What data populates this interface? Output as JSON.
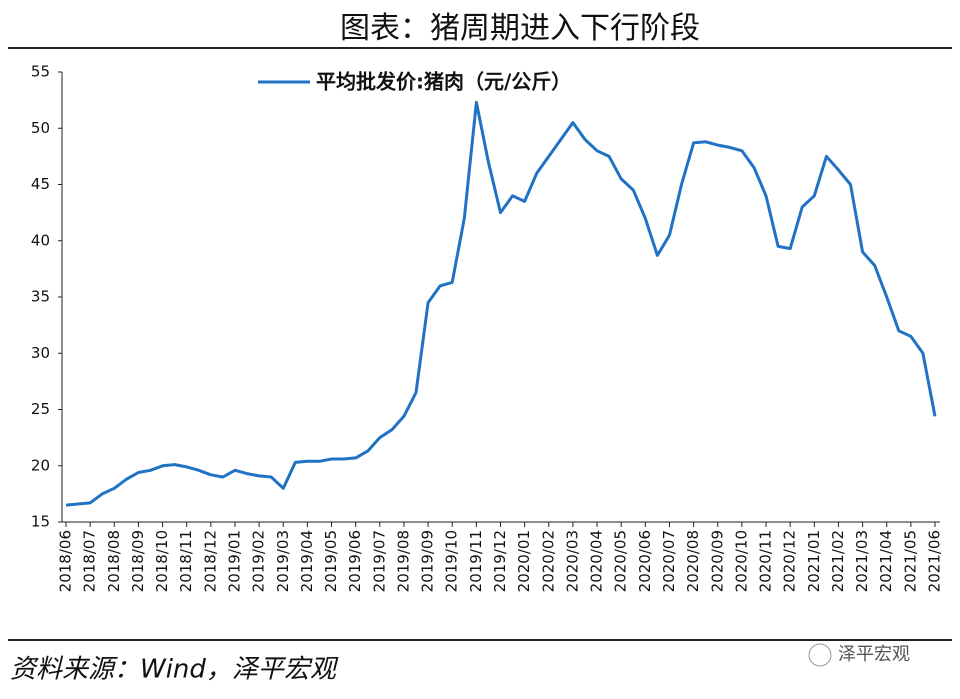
{
  "chart_data": {
    "type": "line",
    "title": "图表：猪周期进入下行阶段",
    "source": "资料来源：Wind，泽平宏观",
    "watermark": "泽平宏观",
    "categories": [
      "2018/06",
      null,
      "2018/07",
      null,
      "2018/08",
      null,
      "2018/09",
      null,
      "2018/10",
      null,
      "2018/11",
      null,
      "2018/12",
      null,
      "2019/01",
      null,
      "2019/02",
      null,
      "2019/03",
      null,
      "2019/04",
      null,
      "2019/05",
      null,
      "2019/06",
      null,
      "2019/07",
      null,
      "2019/08",
      null,
      "2019/09",
      null,
      "2019/10",
      null,
      "2019/11",
      null,
      "2019/12",
      null,
      "2020/01",
      null,
      "2020/02",
      null,
      "2020/03",
      null,
      "2020/04",
      null,
      "2020/05",
      null,
      "2020/06",
      null,
      "2020/07",
      null,
      "2020/08",
      null,
      "2020/09",
      null,
      "2020/10",
      null,
      "2020/11",
      null,
      "2020/12",
      null,
      "2021/01",
      null,
      "2021/02",
      null,
      "2021/03",
      null,
      "2021/04",
      null,
      "2021/05",
      null,
      "2021/06"
    ],
    "series": [
      {
        "name": "平均批发价:猪肉（元/公斤）",
        "color": "#1f72c4",
        "values": [
          16.5,
          16.6,
          16.7,
          17.5,
          18.0,
          18.8,
          19.4,
          19.6,
          20.0,
          20.1,
          19.9,
          19.6,
          19.2,
          19.0,
          19.6,
          19.3,
          19.1,
          19.0,
          18.0,
          20.3,
          20.4,
          20.4,
          20.6,
          20.6,
          20.7,
          21.3,
          22.5,
          23.2,
          24.4,
          26.5,
          34.5,
          36.0,
          36.3,
          42.0,
          52.3,
          47.0,
          42.5,
          44.0,
          43.5,
          46.0,
          47.5,
          49.0,
          50.5,
          49.0,
          48.0,
          47.5,
          45.5,
          44.5,
          42.0,
          38.7,
          40.5,
          45.0,
          48.7,
          48.8,
          48.5,
          48.3,
          48.0,
          46.5,
          44.0,
          39.5,
          39.3,
          43.0,
          44.0,
          47.5,
          46.3,
          45.0,
          39.0,
          37.8,
          35.0,
          32.0,
          31.5,
          30.0,
          24.4
        ]
      }
    ],
    "ylim": [
      15,
      55
    ],
    "yticks": [
      15,
      20,
      25,
      30,
      35,
      40,
      45,
      50,
      55
    ],
    "grid": false
  }
}
